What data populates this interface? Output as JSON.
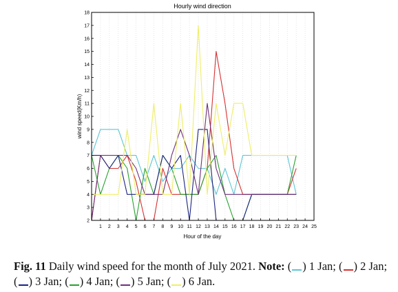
{
  "chart_data": {
    "type": "line",
    "title": "Hourly wind direction",
    "xlabel": "Hour of the day",
    "ylabel": "wind speed(Km/h)",
    "xlim": [
      0,
      25
    ],
    "ylim": [
      2,
      18
    ],
    "x_ticks": [
      1,
      2,
      3,
      4,
      5,
      6,
      7,
      8,
      9,
      10,
      11,
      12,
      13,
      14,
      15,
      16,
      17,
      18,
      19,
      20,
      21,
      22,
      23,
      24,
      25
    ],
    "y_ticks": [
      2,
      3,
      4,
      5,
      6,
      7,
      8,
      9,
      10,
      11,
      12,
      13,
      14,
      15,
      16,
      17,
      18
    ],
    "grid": "x-dotted",
    "x": [
      0,
      1,
      2,
      3,
      4,
      5,
      6,
      7,
      8,
      9,
      10,
      11,
      12,
      13,
      14,
      15,
      16,
      17,
      18,
      19,
      20,
      21,
      22,
      23
    ],
    "series": [
      {
        "color": "#5bc5d6",
        "values": [
          7,
          9,
          9,
          9,
          7,
          7,
          5,
          7,
          5,
          6,
          6,
          7,
          6,
          6,
          4,
          6,
          4,
          7,
          7,
          7,
          7,
          7,
          7,
          4
        ]
      },
      {
        "color": "#d62f2f",
        "values": [
          2,
          7,
          6,
          6,
          7,
          5,
          2,
          2,
          6,
          4,
          4,
          4,
          4,
          6,
          15,
          11,
          6,
          4,
          4,
          4,
          4,
          4,
          4,
          6
        ]
      },
      {
        "color": "#28a02e",
        "values": [
          7,
          4,
          6,
          7,
          6,
          2,
          6,
          4,
          7,
          6,
          4,
          4,
          4,
          6,
          7,
          4,
          2,
          2,
          4,
          4,
          4,
          4,
          4,
          7
        ]
      },
      {
        "color": "#1a237e",
        "values": [
          7,
          7,
          6,
          7,
          4,
          4,
          4,
          4,
          7,
          6,
          7,
          2,
          9,
          9,
          2,
          2,
          2,
          2,
          4,
          4,
          4,
          4,
          4,
          4
        ]
      },
      {
        "color": "#6d2f7a",
        "values": [
          2,
          7,
          7,
          7,
          7,
          6,
          4,
          4,
          4,
          7,
          9,
          7,
          4,
          11,
          6,
          4,
          4,
          4,
          4,
          4,
          4,
          4,
          4,
          4
        ]
      },
      {
        "color": "#eeee66",
        "values": [
          4,
          4,
          4,
          4,
          9,
          4,
          4,
          11,
          4,
          4,
          11,
          4,
          17,
          4,
          11,
          7,
          11,
          11,
          7,
          7,
          7,
          7,
          7,
          7
        ]
      }
    ]
  },
  "caption": {
    "label": "Fig. 11",
    "text": "Daily wind speed for the month of July 2021.",
    "note_label": "Note:",
    "items": [
      {
        "day": "1 Jan;",
        "color": "#5bc5d6"
      },
      {
        "day": "2 Jan;",
        "color": "#d62f2f"
      },
      {
        "day": "3 Jan;",
        "color": "#1a237e"
      },
      {
        "day": "4 Jan;",
        "color": "#28a02e"
      },
      {
        "day": "5 Jan;",
        "color": "#6d2f7a"
      },
      {
        "day": "6 Jan.",
        "color": "#eeee66"
      }
    ]
  }
}
